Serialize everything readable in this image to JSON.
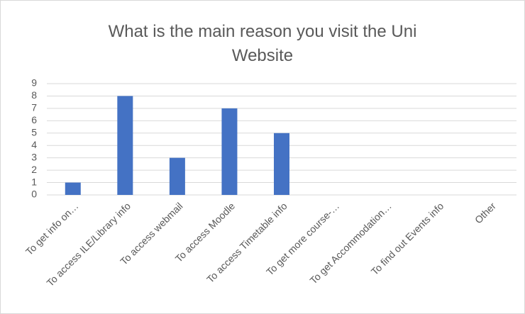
{
  "chart_data": {
    "type": "bar",
    "title": "What is the main reason you visit the Uni Website",
    "categories": [
      "To get info on…",
      "To access ILE/Library info",
      "To access webmail",
      "To access Moodle",
      "To access Timetable info",
      "To get more course-…",
      "To get Accommodation…",
      "To find out Events info",
      "Other"
    ],
    "values": [
      1,
      8,
      3,
      7,
      5,
      0,
      0,
      0,
      0
    ],
    "color": "#4472c4",
    "ylim": [
      0,
      9
    ],
    "yticks": [
      0,
      1,
      2,
      3,
      4,
      5,
      6,
      7,
      8,
      9
    ],
    "grid": true
  }
}
